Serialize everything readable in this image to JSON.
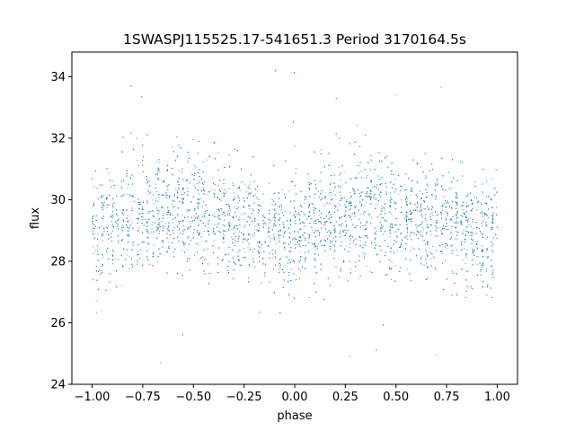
{
  "chart_data": {
    "type": "scatter",
    "title": "1SWASPJ115525.17-541651.3 Period 3170164.5s",
    "xlabel": "phase",
    "ylabel": "flux",
    "xlim": [
      -1.1,
      1.1
    ],
    "ylim": [
      24.0,
      34.8
    ],
    "x_ticks": [
      -1.0,
      -0.75,
      -0.5,
      -0.25,
      0.0,
      0.25,
      0.5,
      0.75,
      1.0
    ],
    "x_tick_labels": [
      "−1.00",
      "−0.75",
      "−0.50",
      "−0.25",
      "0.00",
      "0.25",
      "0.50",
      "0.75",
      "1.00"
    ],
    "y_ticks": [
      24,
      26,
      28,
      30,
      32,
      34
    ],
    "y_tick_labels": [
      "24",
      "26",
      "28",
      "30",
      "32",
      "34"
    ],
    "grid": false,
    "legend": "none",
    "marker_color": "#1f77b4",
    "series": [
      {
        "phase_range": [
          -1.0,
          1.0
        ],
        "mean_flux": 29.3,
        "flux_spread": 0.9,
        "outlier_flux_range": [
          24.5,
          34.3
        ],
        "approx_points": 9000,
        "profile": [
          {
            "phase": -1.0,
            "flux": 29.0
          },
          {
            "phase": -0.9,
            "flux": 29.2
          },
          {
            "phase": -0.8,
            "flux": 29.4
          },
          {
            "phase": -0.7,
            "flux": 29.6
          },
          {
            "phase": -0.6,
            "flux": 29.7
          },
          {
            "phase": -0.5,
            "flux": 29.6
          },
          {
            "phase": -0.4,
            "flux": 29.4
          },
          {
            "phase": -0.3,
            "flux": 29.3
          },
          {
            "phase": -0.2,
            "flux": 29.2
          },
          {
            "phase": -0.1,
            "flux": 29.0
          },
          {
            "phase": 0.0,
            "flux": 28.9
          },
          {
            "phase": 0.1,
            "flux": 29.2
          },
          {
            "phase": 0.2,
            "flux": 29.4
          },
          {
            "phase": 0.3,
            "flux": 29.6
          },
          {
            "phase": 0.4,
            "flux": 29.7
          },
          {
            "phase": 0.5,
            "flux": 29.6
          },
          {
            "phase": 0.6,
            "flux": 29.4
          },
          {
            "phase": 0.7,
            "flux": 29.3
          },
          {
            "phase": 0.8,
            "flux": 29.2
          },
          {
            "phase": 0.9,
            "flux": 29.0
          },
          {
            "phase": 1.0,
            "flux": 28.9
          }
        ]
      }
    ]
  }
}
